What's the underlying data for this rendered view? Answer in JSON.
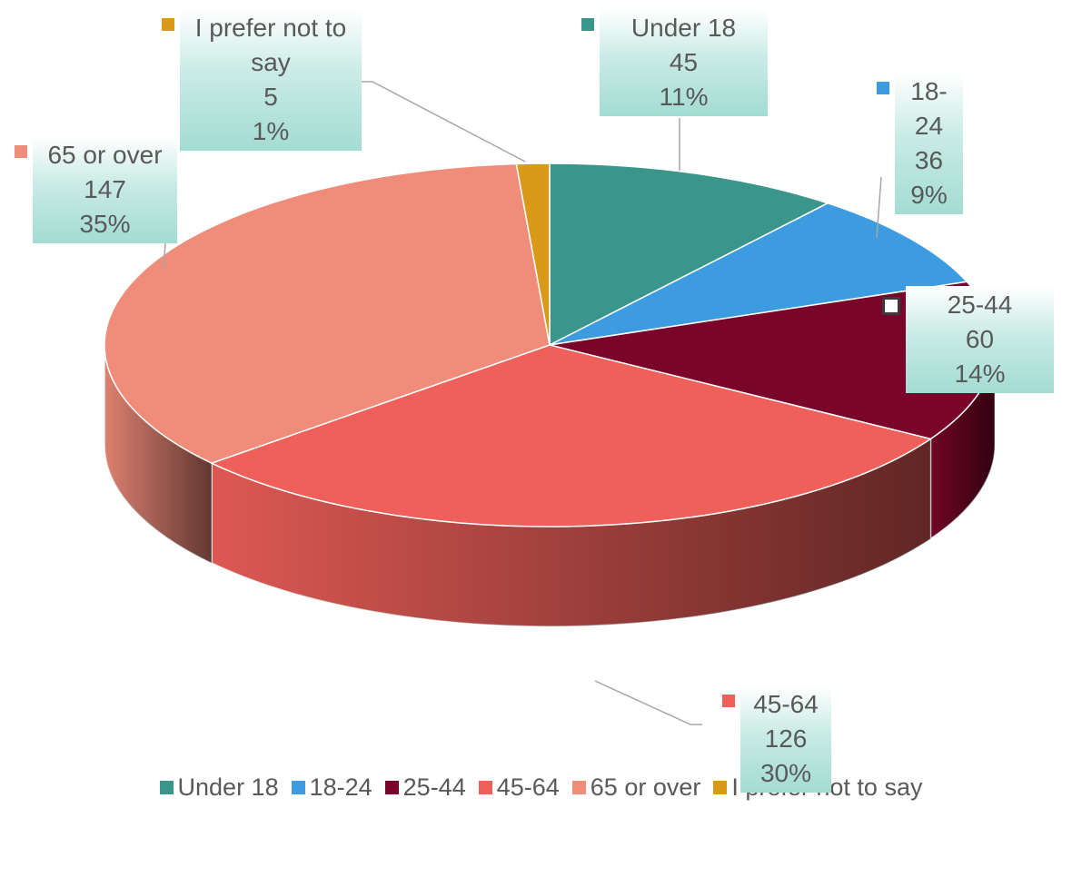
{
  "chart_data": {
    "type": "pie",
    "categories": [
      "Under 18",
      "18-24",
      "25-44",
      "45-64",
      "65 or over",
      "I prefer not to say"
    ],
    "values": [
      45,
      36,
      60,
      126,
      147,
      5
    ],
    "percent_labels": [
      "11%",
      "9%",
      "14%",
      "30%",
      "35%",
      "1%"
    ],
    "colors": [
      "#3a968a",
      "#3d9be0",
      "#7b052a",
      "#f0605a",
      "#f08c7a",
      "#d89a18"
    ],
    "legend": "bottom"
  }
}
